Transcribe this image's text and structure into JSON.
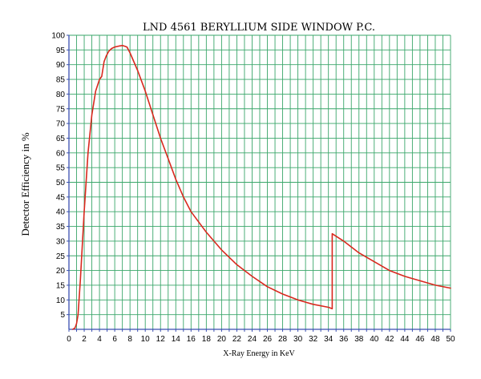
{
  "chart_data": {
    "type": "line",
    "title": "LND 4561 BERYLLIUM SIDE WINDOW P.C.",
    "xlabel": "X-Ray Energy in KeV",
    "ylabel": "Detector Efficiency in %",
    "xlim": [
      0,
      50
    ],
    "ylim": [
      0,
      100
    ],
    "x_ticks": [
      0,
      2,
      4,
      6,
      8,
      10,
      12,
      14,
      16,
      18,
      20,
      22,
      24,
      26,
      28,
      30,
      32,
      34,
      36,
      38,
      40,
      42,
      44,
      46,
      48,
      50
    ],
    "y_ticks": [
      5,
      10,
      15,
      20,
      25,
      30,
      35,
      40,
      45,
      50,
      55,
      60,
      65,
      70,
      75,
      80,
      85,
      90,
      95,
      100
    ],
    "x_minor_step": 1,
    "grid": true,
    "grid_color": "#3aa66a",
    "axis_color": "#3a4fb0",
    "line_color": "#d9281e",
    "series": [
      {
        "x": [
          0.5,
          0.8,
          1.0,
          1.2,
          1.5,
          2.0,
          2.5,
          3.0,
          3.5,
          4.0,
          4.3,
          4.6,
          4.9,
          5.2,
          5.6,
          6.0,
          6.5,
          7.0,
          7.3,
          7.6,
          8.0,
          9.0,
          10.0,
          11.0,
          12.0,
          13.0,
          14.0,
          15.0,
          16.0,
          18.0,
          20.0,
          22.0,
          24.0,
          26.0,
          28.0,
          30.0,
          32.0,
          34.0,
          34.5,
          34.5,
          36.0,
          38.0,
          40.0,
          42.0,
          44.0,
          46.0,
          48.0,
          50.0
        ],
        "y": [
          0,
          0.5,
          2,
          5,
          17,
          40,
          60,
          73,
          81,
          85,
          86,
          91,
          93,
          94.5,
          95.5,
          96,
          96.3,
          96.5,
          96.3,
          96,
          94,
          88,
          81,
          73,
          65,
          58,
          51,
          45,
          40,
          33,
          27,
          22,
          18,
          14.5,
          12,
          10,
          8.5,
          7.5,
          7,
          32.5,
          30,
          26,
          23,
          20,
          18,
          16.5,
          15,
          14
        ]
      }
    ]
  }
}
